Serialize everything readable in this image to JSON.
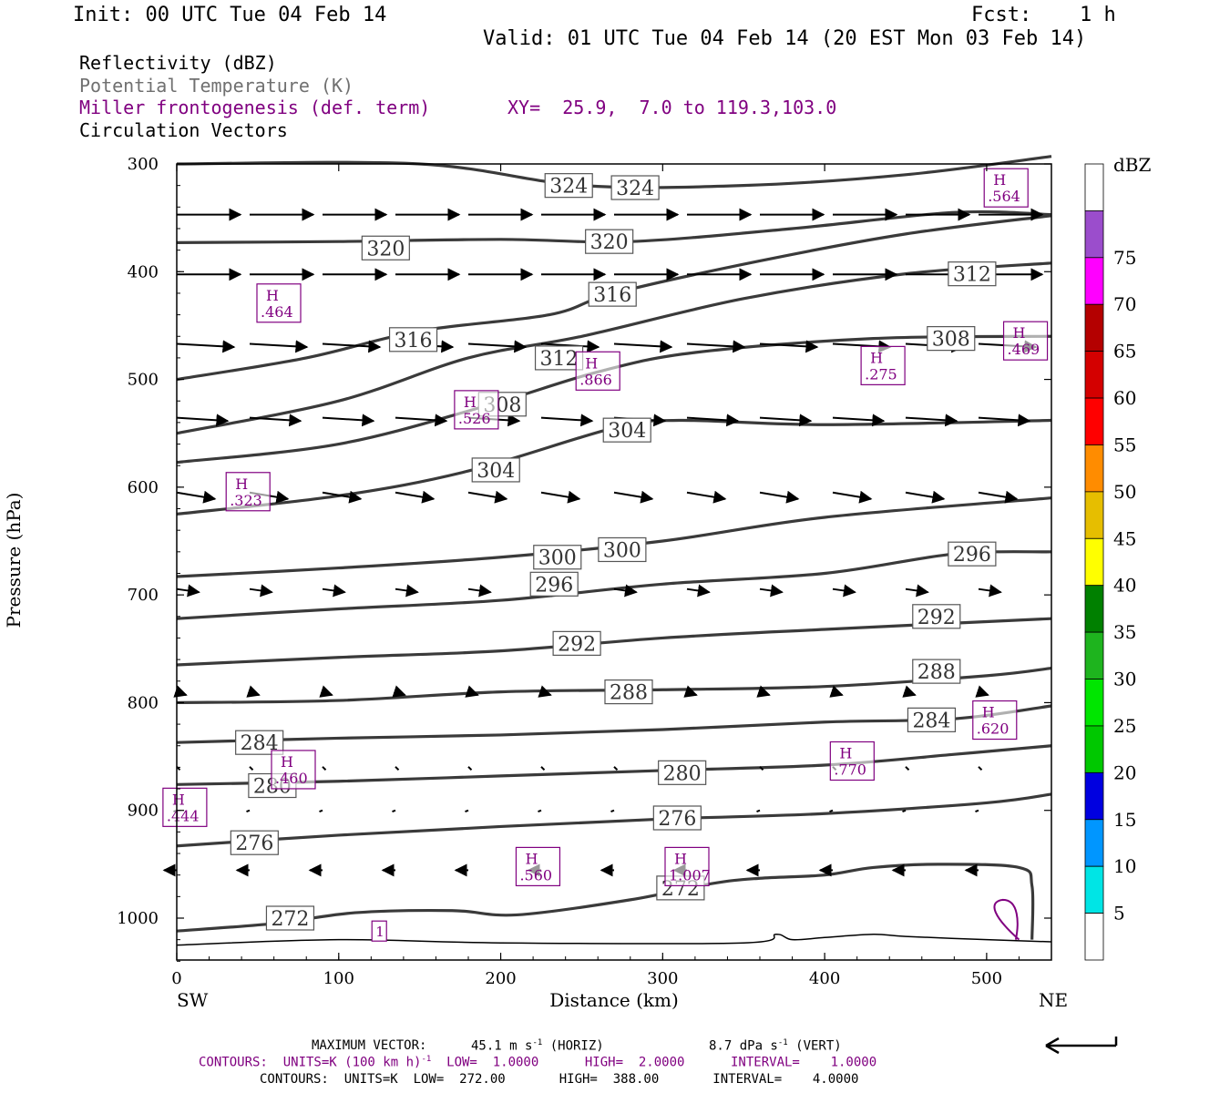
{
  "header": {
    "init": "Init: 00 UTC Tue 04 Feb 14",
    "fcst_label": "Fcst:",
    "fcst_value": "1 h",
    "valid": "Valid: 01 UTC Tue 04 Feb 14 (20 EST Mon 03 Feb 14)"
  },
  "fields": {
    "reflectivity": "Reflectivity (dBZ)",
    "theta": "Potential Temperature (K)",
    "frontogenesis": "Miller frontogenesis (def. term)",
    "circulation": "Circulation Vectors",
    "xy": "XY=  25.9,  7.0 to 119.3,103.0"
  },
  "colors": {
    "theta_contour": "#3a3a3a",
    "frontogenesis": "#800080",
    "background": "#ffffff"
  },
  "chart_data": {
    "type": "cross-section",
    "xlabel": "Distance (km)",
    "ylabel": "Pressure (hPa)",
    "xlim": [
      0,
      540
    ],
    "ylim": [
      300,
      1040
    ],
    "x_ticks": [
      "0",
      "100",
      "200",
      "300",
      "400",
      "500"
    ],
    "y_ticks": [
      "300",
      "400",
      "500",
      "600",
      "700",
      "800",
      "900",
      "1000"
    ],
    "x_end_labels": {
      "left": "SW",
      "right": "NE"
    },
    "theta_contours": [
      {
        "label": "324",
        "points": [
          [
            0,
            300
          ],
          [
            150,
            300
          ],
          [
            250,
            320
          ],
          [
            350,
            320
          ],
          [
            450,
            310
          ],
          [
            540,
            293
          ]
        ],
        "label_pos": [
          [
            242,
            320
          ],
          [
            283,
            322
          ]
        ]
      },
      {
        "label": "320",
        "points": [
          [
            0,
            373
          ],
          [
            100,
            372
          ],
          [
            200,
            370
          ],
          [
            280,
            372
          ],
          [
            380,
            360
          ],
          [
            480,
            345
          ],
          [
            540,
            347
          ]
        ],
        "label_pos": [
          [
            129,
            378
          ],
          [
            267,
            372
          ]
        ]
      },
      {
        "label": "316",
        "points": [
          [
            0,
            500
          ],
          [
            80,
            480
          ],
          [
            150,
            455
          ],
          [
            230,
            440
          ],
          [
            270,
            420
          ],
          [
            360,
            390
          ],
          [
            450,
            365
          ],
          [
            540,
            348
          ]
        ],
        "label_pos": [
          [
            146,
            463
          ],
          [
            269,
            421
          ]
        ]
      },
      {
        "label": "312",
        "points": [
          [
            0,
            550
          ],
          [
            100,
            520
          ],
          [
            180,
            480
          ],
          [
            250,
            460
          ],
          [
            350,
            425
          ],
          [
            450,
            402
          ],
          [
            540,
            392
          ]
        ],
        "label_pos": [
          [
            236,
            480
          ],
          [
            491,
            402
          ]
        ]
      },
      {
        "label": "308",
        "points": [
          [
            0,
            577
          ],
          [
            100,
            560
          ],
          [
            190,
            525
          ],
          [
            260,
            493
          ],
          [
            320,
            475
          ],
          [
            430,
            462
          ],
          [
            540,
            460
          ]
        ],
        "label_pos": [
          [
            201,
            523
          ],
          [
            478,
            462
          ]
        ]
      },
      {
        "label": "304",
        "points": [
          [
            0,
            625
          ],
          [
            100,
            608
          ],
          [
            180,
            585
          ],
          [
            270,
            545
          ],
          [
            310,
            538
          ],
          [
            400,
            542
          ],
          [
            540,
            538
          ]
        ],
        "label_pos": [
          [
            197,
            584
          ],
          [
            278,
            547
          ]
        ]
      },
      {
        "label": "300",
        "points": [
          [
            0,
            683
          ],
          [
            100,
            675
          ],
          [
            200,
            665
          ],
          [
            300,
            650
          ],
          [
            400,
            628
          ],
          [
            540,
            610
          ]
        ],
        "label_pos": [
          [
            235,
            665
          ],
          [
            275,
            658
          ]
        ]
      },
      {
        "label": "296",
        "points": [
          [
            0,
            722
          ],
          [
            100,
            713
          ],
          [
            200,
            705
          ],
          [
            300,
            690
          ],
          [
            400,
            680
          ],
          [
            480,
            662
          ],
          [
            540,
            660
          ]
        ],
        "label_pos": [
          [
            233,
            690
          ],
          [
            491,
            662
          ]
        ]
      },
      {
        "label": "292",
        "points": [
          [
            0,
            765
          ],
          [
            100,
            758
          ],
          [
            200,
            752
          ],
          [
            300,
            740
          ],
          [
            400,
            732
          ],
          [
            540,
            722
          ]
        ],
        "label_pos": [
          [
            247,
            745
          ],
          [
            469,
            720
          ]
        ]
      },
      {
        "label": "288",
        "points": [
          [
            0,
            800
          ],
          [
            100,
            798
          ],
          [
            200,
            790
          ],
          [
            300,
            788
          ],
          [
            400,
            785
          ],
          [
            500,
            775
          ],
          [
            540,
            768
          ]
        ],
        "label_pos": [
          [
            279,
            790
          ],
          [
            469,
            771
          ]
        ]
      },
      {
        "label": "284",
        "points": [
          [
            0,
            837
          ],
          [
            100,
            833
          ],
          [
            200,
            830
          ],
          [
            300,
            825
          ],
          [
            400,
            818
          ],
          [
            480,
            815
          ],
          [
            540,
            803
          ]
        ],
        "label_pos": [
          [
            51,
            837
          ],
          [
            466,
            816
          ]
        ]
      },
      {
        "label": "280",
        "points": [
          [
            0,
            876
          ],
          [
            100,
            873
          ],
          [
            200,
            868
          ],
          [
            300,
            863
          ],
          [
            400,
            858
          ],
          [
            480,
            848
          ],
          [
            540,
            840
          ]
        ],
        "label_pos": [
          [
            59,
            877
          ],
          [
            312,
            865
          ]
        ]
      },
      {
        "label": "276",
        "points": [
          [
            0,
            933
          ],
          [
            100,
            923
          ],
          [
            200,
            915
          ],
          [
            300,
            908
          ],
          [
            400,
            903
          ],
          [
            500,
            893
          ],
          [
            540,
            885
          ]
        ],
        "label_pos": [
          [
            48,
            930
          ],
          [
            309,
            907
          ]
        ]
      },
      {
        "label": "272",
        "points": [
          [
            0,
            1012
          ],
          [
            60,
            1005
          ],
          [
            110,
            995
          ],
          [
            170,
            993
          ],
          [
            210,
            997
          ],
          [
            280,
            983
          ],
          [
            330,
            968
          ],
          [
            360,
            963
          ],
          [
            400,
            960
          ],
          [
            430,
            953
          ],
          [
            470,
            950
          ],
          [
            520,
            953
          ],
          [
            528,
            970
          ],
          [
            528,
            1020
          ]
        ],
        "label_pos": [
          [
            70,
            1000
          ],
          [
            311,
            972
          ]
        ]
      }
    ],
    "surface_line": {
      "points": [
        [
          0,
          1025
        ],
        [
          100,
          1020
        ],
        [
          200,
          1023
        ],
        [
          350,
          1023
        ],
        [
          370,
          1015
        ],
        [
          380,
          1020
        ],
        [
          400,
          1018
        ],
        [
          430,
          1015
        ],
        [
          450,
          1017
        ],
        [
          500,
          1020
        ],
        [
          540,
          1022
        ]
      ]
    },
    "frontogenesis_maxima": [
      {
        "symbol": "H",
        "value": ".564",
        "x": 512,
        "y": 323
      },
      {
        "symbol": "H",
        "value": ".464",
        "x": 63,
        "y": 430
      },
      {
        "symbol": "H",
        "value": ".469",
        "x": 524,
        "y": 465
      },
      {
        "symbol": "H",
        "value": ".866",
        "x": 260,
        "y": 493
      },
      {
        "symbol": "H",
        "value": ".275",
        "x": 436,
        "y": 488
      },
      {
        "symbol": "H",
        "value": ".526",
        "x": 185,
        "y": 529
      },
      {
        "symbol": "H",
        "value": ".323",
        "x": 44,
        "y": 605
      },
      {
        "symbol": "H",
        "value": ".620",
        "x": 505,
        "y": 817
      },
      {
        "symbol": "H",
        "value": ".770",
        "x": 417,
        "y": 855
      },
      {
        "symbol": "H",
        "value": ".460",
        "x": 72,
        "y": 863
      },
      {
        "symbol": "H",
        "value": ".444",
        "x": 5,
        "y": 898
      },
      {
        "symbol": "H",
        "value": ".560",
        "x": 223,
        "y": 953
      },
      {
        "symbol": "H",
        "value": "1.007",
        "x": 315,
        "y": 953
      },
      {
        "symbol": "",
        "value": "1",
        "x": 125,
        "y": 1012
      }
    ],
    "vector_rows": [
      {
        "y": 347,
        "u": 1.0,
        "v": 0.0
      },
      {
        "y": 400,
        "u": 1.0,
        "v": 0.0
      },
      {
        "y": 467,
        "u": 0.9,
        "v": 0.05
      },
      {
        "y": 533,
        "u": 0.8,
        "v": 0.05
      },
      {
        "y": 605,
        "u": 0.6,
        "v": 0.1
      },
      {
        "y": 692,
        "u": 0.35,
        "v": 0.05
      },
      {
        "y": 790,
        "u": 0.15,
        "v": 0.05
      },
      {
        "y": 857,
        "u": 0.05,
        "v": 0.05
      },
      {
        "y": 900,
        "u": -0.05,
        "v": 0.02
      },
      {
        "y": 953,
        "u": -0.2,
        "v": 0.0
      }
    ],
    "grid": false
  },
  "colorbar": {
    "title": "dBZ",
    "labels": [
      "5",
      "10",
      "15",
      "20",
      "25",
      "30",
      "35",
      "40",
      "45",
      "50",
      "55",
      "60",
      "65",
      "70",
      "75"
    ],
    "colors": [
      "#ffffff",
      "#00e5e5",
      "#0096ff",
      "#0000e0",
      "#00c800",
      "#00e600",
      "#1eb41e",
      "#008000",
      "#ffff00",
      "#e6be00",
      "#ff8c00",
      "#ff0000",
      "#d40000",
      "#b40000",
      "#ff00ff",
      "#9b4dcc",
      "#ffffff"
    ]
  },
  "footer": {
    "max_vector_label": "MAXIMUM VECTOR:",
    "max_vector_horiz": "45.1 m s",
    "horiz_tag": "(HORIZ)",
    "max_vector_vert": "8.7 dPa s",
    "vert_tag": "(VERT)",
    "contours_fronto": "CONTOURS:  UNITS=K (100 km h)",
    "contours_fronto_rest": "LOW=  1.0000      HIGH=  2.0000      INTERVAL=    1.0000",
    "contours_theta": "CONTOURS:  UNITS=K  LOW=  272.00       HIGH=  388.00       INTERVAL=    4.0000",
    "exp_minus1": "-1"
  }
}
